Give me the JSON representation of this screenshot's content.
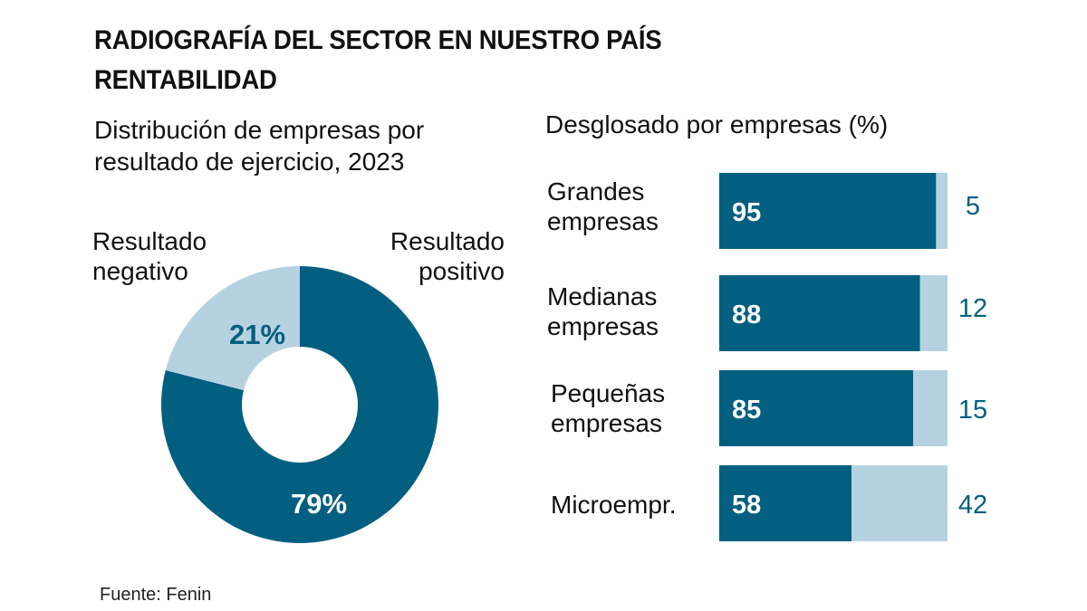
{
  "header": {
    "title": "RADIOGRAFÍA DEL SECTOR EN NUESTRO PAÍS",
    "subtitle": "RENTABILIDAD"
  },
  "colors": {
    "dark": "#035f80",
    "light": "#b6d2e0",
    "text": "#111111"
  },
  "footer": {
    "source": "Fuente: Fenin"
  },
  "chart_data": [
    {
      "type": "pie",
      "title_line1": "Distribución de empresas por",
      "title_line2": "resultado de ejercicio, 2023",
      "donut": true,
      "slices": [
        {
          "name": "Resultado positivo",
          "label_line1": "Resultado",
          "label_line2": "positivo",
          "value": 79,
          "value_label": "79%"
        },
        {
          "name": "Resultado negativo",
          "label_line1": "Resultado",
          "label_line2": "negativo",
          "value": 21,
          "value_label": "21%"
        }
      ]
    },
    {
      "type": "bar",
      "orientation": "horizontal",
      "stacked": true,
      "title": "Desglosado por empresas (%)",
      "categories": [
        {
          "line1": "Grandes",
          "line2": "empresas"
        },
        {
          "line1": "Medianas",
          "line2": "empresas"
        },
        {
          "line1": "Pequeñas",
          "line2": "empresas"
        },
        {
          "line1": "Microempr.",
          "line2": ""
        }
      ],
      "series": [
        {
          "name": "Resultado positivo",
          "values": [
            95,
            88,
            85,
            58
          ]
        },
        {
          "name": "Resultado negativo",
          "values": [
            5,
            12,
            15,
            42
          ]
        }
      ],
      "xlim": [
        0,
        100
      ]
    }
  ]
}
